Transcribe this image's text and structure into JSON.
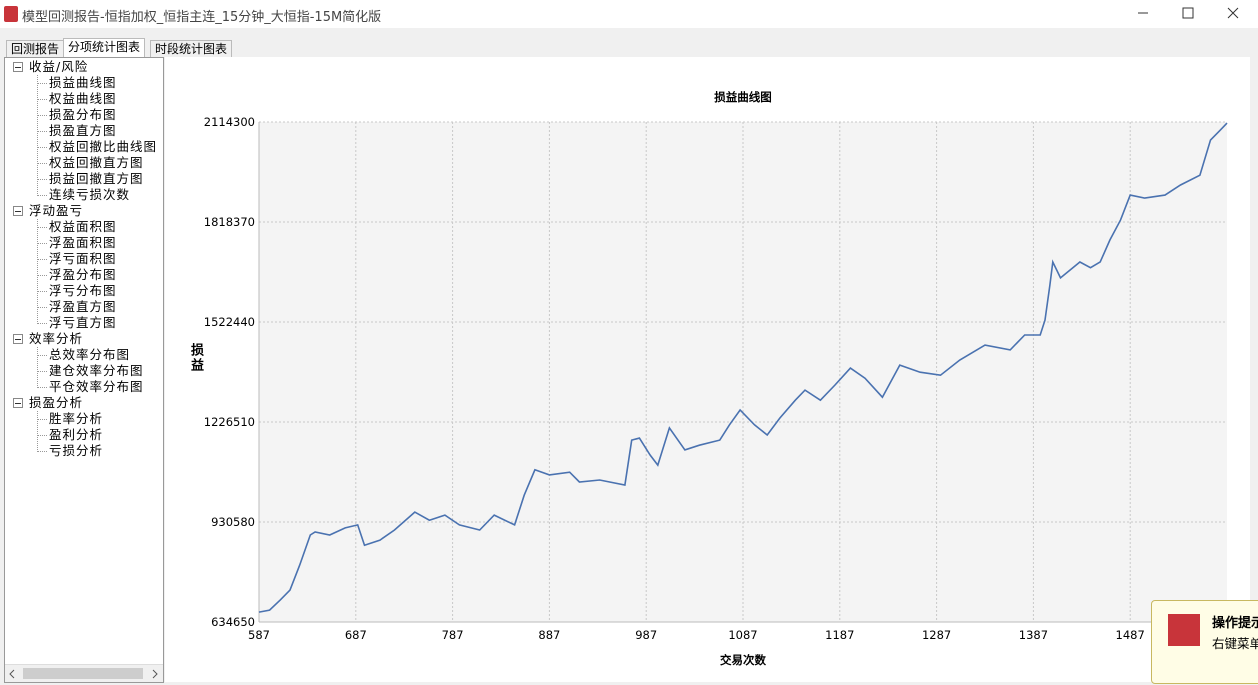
{
  "window": {
    "title": "模型回测报告-恒指加权_恒指主连_15分钟_大恒指-15M简化版"
  },
  "tabs": [
    "回测报告",
    "分项统计图表",
    "时段统计图表"
  ],
  "tree": [
    {
      "label": "收益/风险",
      "children": [
        "损益曲线图",
        "权益曲线图",
        "损盈分布图",
        "损盈直方图",
        "权益回撤比曲线图",
        "权益回撤直方图",
        "损益回撤直方图",
        "连续亏损次数"
      ]
    },
    {
      "label": "浮动盈亏",
      "children": [
        "权益面积图",
        "浮盈面积图",
        "浮亏面积图",
        "浮盈分布图",
        "浮亏分布图",
        "浮盈直方图",
        "浮亏直方图"
      ]
    },
    {
      "label": "效率分析",
      "children": [
        "总效率分布图",
        "建仓效率分布图",
        "平仓效率分布图"
      ]
    },
    {
      "label": "损盈分析",
      "children": [
        "胜率分析",
        "盈利分析",
        "亏损分析"
      ]
    }
  ],
  "popup": {
    "title": "操作提示",
    "text": "右键菜单"
  },
  "chart_data": {
    "type": "line",
    "title": "损益曲线图",
    "x_label": "交易次数",
    "y_label": "损益",
    "x": [
      587,
      598,
      609,
      619,
      629,
      640,
      645,
      660,
      676,
      689,
      696,
      712,
      727,
      748,
      763,
      779,
      794,
      815,
      830,
      851,
      861,
      872,
      887,
      908,
      918,
      939,
      965,
      972,
      980,
      991,
      999,
      1011,
      1027,
      1042,
      1063,
      1073,
      1084,
      1099,
      1112,
      1125,
      1141,
      1151,
      1167,
      1182,
      1198,
      1213,
      1231,
      1249,
      1270,
      1291,
      1311,
      1337,
      1363,
      1378,
      1394,
      1399,
      1404,
      1407,
      1415,
      1435,
      1446,
      1456,
      1466,
      1477,
      1487,
      1502,
      1523,
      1539,
      1559,
      1570,
      1580,
      1587
    ],
    "series": [
      {
        "name": "损益",
        "color": "#4a72b0",
        "values": [
          664000,
          670000,
          700000,
          729000,
          803000,
          892000,
          901000,
          892000,
          913000,
          922000,
          862000,
          877000,
          907000,
          960000,
          936000,
          951000,
          922000,
          907000,
          951000,
          922000,
          1010000,
          1085000,
          1070000,
          1078000,
          1049000,
          1055000,
          1040000,
          1173000,
          1179000,
          1129000,
          1099000,
          1209000,
          1144000,
          1158000,
          1173000,
          1218000,
          1262000,
          1218000,
          1188000,
          1238000,
          1291000,
          1321000,
          1291000,
          1336000,
          1386000,
          1356000,
          1300000,
          1395000,
          1374000,
          1365000,
          1410000,
          1454000,
          1440000,
          1484000,
          1484000,
          1528000,
          1632000,
          1700000,
          1653000,
          1700000,
          1683000,
          1700000,
          1765000,
          1824000,
          1898000,
          1889000,
          1898000,
          1928000,
          1957000,
          2061000,
          2090000,
          2111000
        ]
      }
    ],
    "xlim": [
      587,
      1587
    ],
    "xticks": [
      587,
      687,
      787,
      887,
      987,
      1087,
      1187,
      1287,
      1387,
      1487
    ],
    "ylim": [
      634650,
      2114300
    ],
    "yticks": [
      634650,
      930580,
      1226510,
      1522440,
      1818370,
      2114300
    ],
    "grid": true
  }
}
